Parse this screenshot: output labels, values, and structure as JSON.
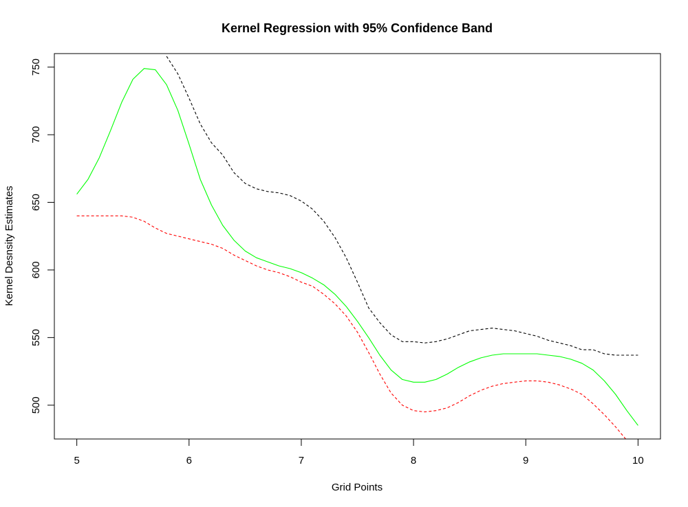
{
  "chart_data": {
    "type": "line",
    "title": "Kernel Regression with 95% Confidence Band",
    "xlabel": "Grid Points",
    "ylabel": "Kernel Desnsity Estimates",
    "xlim": [
      4.8,
      10.2
    ],
    "ylim": [
      475,
      760
    ],
    "xticks": [
      5,
      6,
      7,
      8,
      9,
      10
    ],
    "yticks": [
      500,
      550,
      600,
      650,
      700,
      750
    ],
    "grid": false,
    "legend": "none",
    "series": [
      {
        "style": "solid",
        "color": "#00ff00",
        "x": [
          5.0,
          5.1,
          5.2,
          5.3,
          5.4,
          5.5,
          5.6,
          5.7,
          5.8,
          5.9,
          6.0,
          6.1,
          6.2,
          6.3,
          6.4,
          6.5,
          6.6,
          6.7,
          6.8,
          6.9,
          7.0,
          7.1,
          7.2,
          7.3,
          7.4,
          7.5,
          7.6,
          7.7,
          7.8,
          7.9,
          8.0,
          8.1,
          8.2,
          8.3,
          8.4,
          8.5,
          8.6,
          8.7,
          8.8,
          8.9,
          9.0,
          9.1,
          9.2,
          9.3,
          9.4,
          9.5,
          9.6,
          9.7,
          9.8,
          9.9,
          10.0
        ],
        "y": [
          656,
          667,
          683,
          703,
          724,
          741,
          749,
          748,
          737,
          718,
          693,
          667,
          648,
          633,
          622,
          614,
          609,
          606,
          603,
          601,
          598,
          594,
          589,
          582,
          573,
          562,
          550,
          537,
          526,
          519,
          517,
          517,
          519,
          523,
          528,
          532,
          535,
          537,
          538,
          538,
          538,
          538,
          537,
          536,
          534,
          531,
          526,
          518,
          508,
          496,
          485
        ]
      },
      {
        "style": "dashed",
        "color": "#000000",
        "x": [
          5.8,
          5.9,
          6.0,
          6.1,
          6.2,
          6.3,
          6.4,
          6.5,
          6.6,
          6.7,
          6.8,
          6.9,
          7.0,
          7.1,
          7.2,
          7.3,
          7.4,
          7.5,
          7.6,
          7.7,
          7.8,
          7.9,
          8.0,
          8.1,
          8.2,
          8.3,
          8.4,
          8.5,
          8.6,
          8.7,
          8.8,
          8.9,
          9.0,
          9.1,
          9.2,
          9.3,
          9.4,
          9.5,
          9.6,
          9.7,
          9.8,
          9.9,
          10.0
        ],
        "y": [
          758,
          745,
          727,
          708,
          694,
          685,
          672,
          664,
          660,
          658,
          657,
          655,
          651,
          645,
          636,
          624,
          609,
          591,
          572,
          561,
          552,
          547,
          547,
          546,
          547,
          549,
          552,
          555,
          556,
          557,
          556,
          555,
          553,
          551,
          548,
          546,
          544,
          541,
          541,
          538,
          537,
          537,
          537
        ]
      },
      {
        "style": "dashed",
        "color": "#ff0000",
        "x": [
          5.0,
          5.1,
          5.2,
          5.3,
          5.4,
          5.5,
          5.6,
          5.7,
          5.8,
          5.9,
          6.0,
          6.1,
          6.2,
          6.3,
          6.4,
          6.5,
          6.6,
          6.7,
          6.8,
          6.9,
          7.0,
          7.1,
          7.2,
          7.3,
          7.4,
          7.5,
          7.6,
          7.7,
          7.8,
          7.9,
          8.0,
          8.1,
          8.2,
          8.3,
          8.4,
          8.5,
          8.6,
          8.7,
          8.8,
          8.9,
          9.0,
          9.1,
          9.2,
          9.3,
          9.4,
          9.5,
          9.6,
          9.7,
          9.8,
          9.9
        ],
        "y": [
          640,
          640,
          640,
          640,
          640,
          639,
          636,
          631,
          627,
          625,
          623,
          621,
          619,
          616,
          611,
          607,
          603,
          600,
          598,
          595,
          591,
          588,
          582,
          575,
          566,
          554,
          539,
          523,
          509,
          500,
          496,
          495,
          496,
          498,
          502,
          507,
          511,
          514,
          516,
          517,
          518,
          518,
          517,
          515,
          512,
          508,
          501,
          493,
          484,
          474
        ]
      }
    ]
  }
}
